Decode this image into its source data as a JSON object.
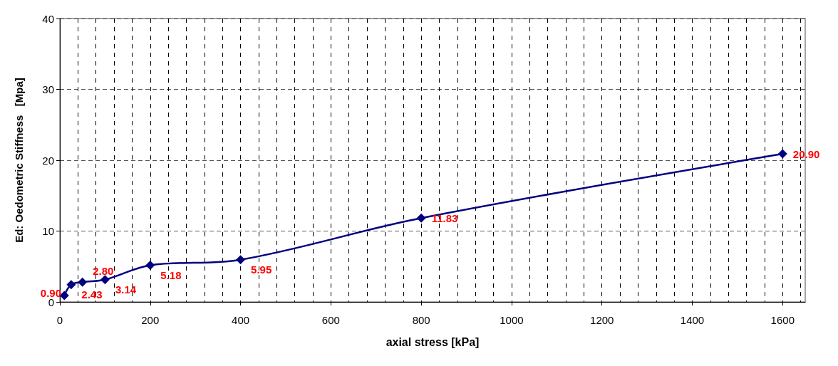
{
  "chart_data": {
    "type": "line",
    "xlabel": "axial stress [kPa]",
    "ylabel": "Ed: Oedometric Stiffness   [Mpa]",
    "x": [
      10,
      25,
      50,
      100,
      200,
      400,
      800,
      1600
    ],
    "series": [
      {
        "color": "#000080",
        "values": [
          0.9,
          2.43,
          2.8,
          3.14,
          5.18,
          5.95,
          11.83,
          20.9
        ],
        "value_labels": [
          "0.90",
          "2.43",
          "2.80",
          "3.14",
          "5.18",
          "5.95",
          "11.83",
          "20.90"
        ]
      }
    ],
    "xlim": [
      0,
      1650
    ],
    "xticks": [
      0,
      200,
      400,
      600,
      800,
      1000,
      1200,
      1400,
      1600
    ],
    "ylim": [
      0,
      40
    ],
    "yticks": [
      0,
      10,
      20,
      30,
      40
    ],
    "grid": true,
    "marker": "diamond",
    "line_style": "solid"
  }
}
